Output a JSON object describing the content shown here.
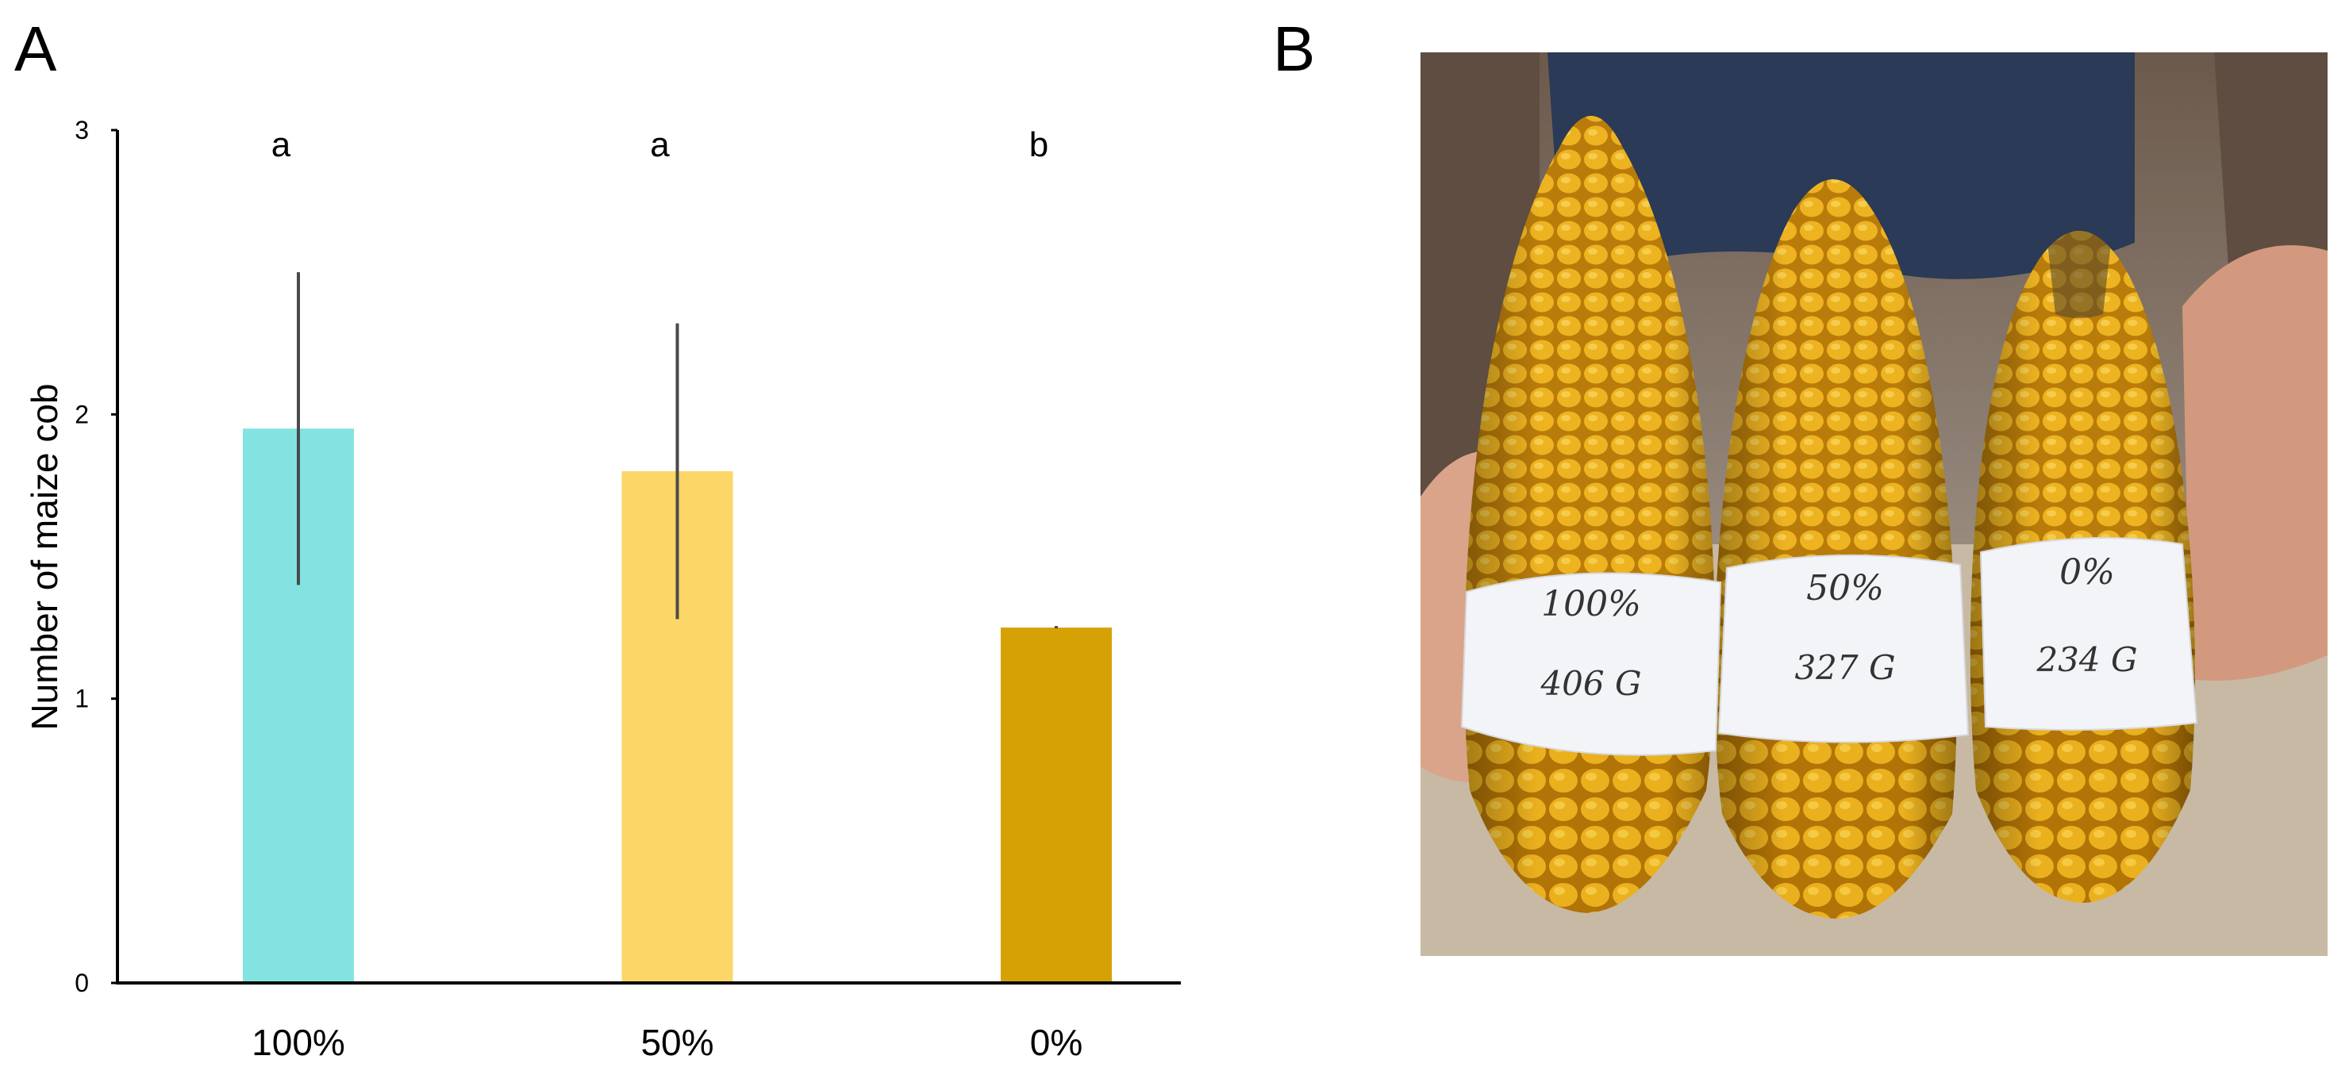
{
  "panels": {
    "a": {
      "label": "A"
    },
    "b": {
      "label": "B"
    }
  },
  "chart_data": {
    "type": "bar",
    "title": "",
    "xlabel": "",
    "ylabel": "Number of maize cob",
    "categories": [
      "100%",
      "50%",
      "0%"
    ],
    "values": [
      1.95,
      1.8,
      1.25
    ],
    "errors": [
      0.55,
      0.52,
      0.0
    ],
    "significance_letters": [
      "a",
      "a",
      "b"
    ],
    "colors": [
      "#82E3E0",
      "#FCD666",
      "#D6A104"
    ],
    "ylim": [
      0,
      3
    ],
    "yticks": [
      0,
      1,
      2,
      3
    ],
    "grid": false,
    "legend": "none"
  },
  "photo": {
    "tags": [
      {
        "line1": "100%",
        "line2": "406 G"
      },
      {
        "line1": "50%",
        "line2": "327 G"
      },
      {
        "line1": "0%",
        "line2": "234 G"
      }
    ]
  }
}
